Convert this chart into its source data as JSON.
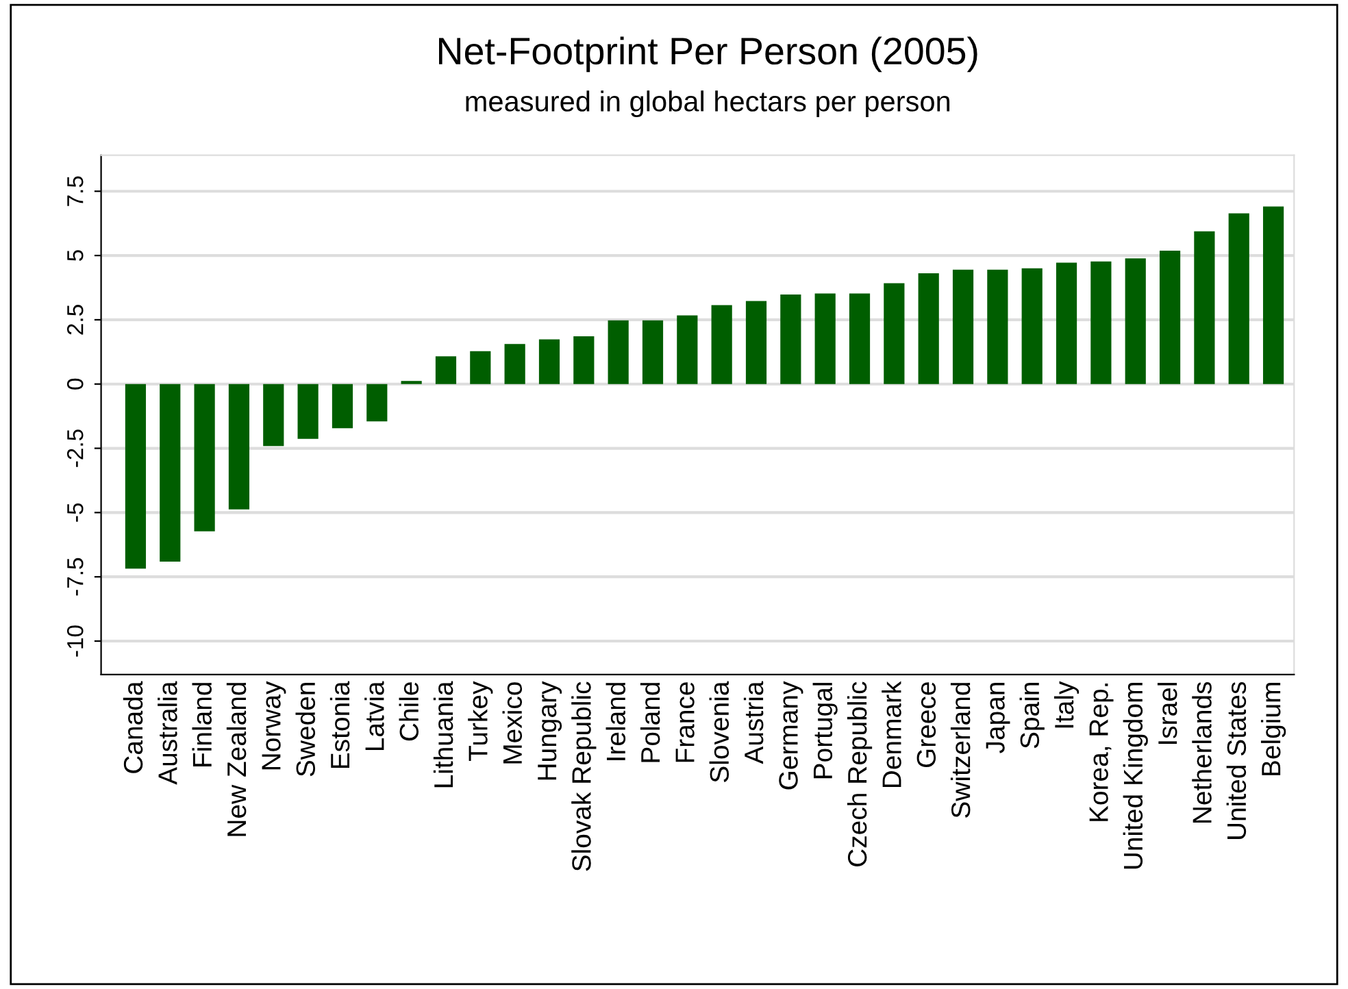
{
  "chart_data": {
    "type": "bar",
    "title": "Net-Footprint Per Person (2005)",
    "subtitle": "measured in global hectars per person",
    "categories": [
      "Canada",
      "Australia",
      "Finland",
      "New Zealand",
      "Norway",
      "Sweden",
      "Estonia",
      "Latvia",
      "Chile",
      "Lithuania",
      "Turkey",
      "Mexico",
      "Hungary",
      "Slovak Republic",
      "Ireland",
      "Poland",
      "France",
      "Slovenia",
      "Austria",
      "Germany",
      "Portugal",
      "Czech Republic",
      "Denmark",
      "Greece",
      "Switzerland",
      "Japan",
      "Spain",
      "Italy",
      "Korea, Rep.",
      "United Kingdom",
      "Israel",
      "Netherlands",
      "United States",
      "Belgium"
    ],
    "values": [
      -7.18,
      -6.91,
      -5.73,
      -4.88,
      -2.41,
      -2.13,
      -1.72,
      -1.45,
      0.12,
      1.08,
      1.28,
      1.56,
      1.74,
      1.86,
      2.48,
      2.48,
      2.67,
      3.07,
      3.23,
      3.48,
      3.52,
      3.52,
      3.92,
      4.31,
      4.45,
      4.45,
      4.5,
      4.72,
      4.77,
      4.89,
      5.19,
      5.94,
      6.64,
      6.91
    ],
    "color": "#005e00",
    "ylim": [
      -11.3,
      8.9
    ],
    "yticks": [
      -10,
      -7.5,
      -5,
      -2.5,
      0,
      2.5,
      5,
      7.5
    ],
    "grid": "y"
  }
}
